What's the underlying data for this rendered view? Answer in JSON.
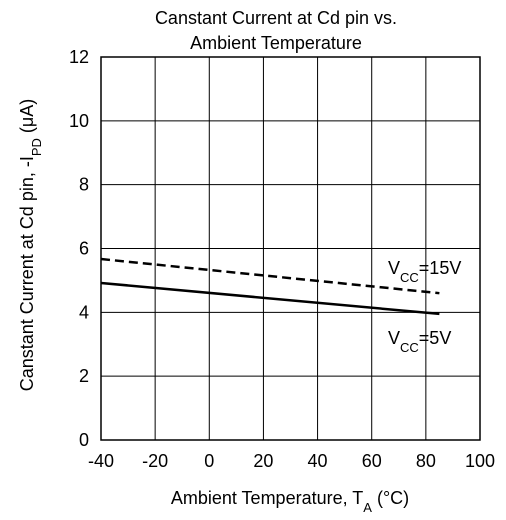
{
  "chart_data": {
    "type": "line",
    "title": [
      "Canstant Current at Cd pin vs.",
      "Ambient Temperature"
    ],
    "xlabel": {
      "main": "Ambient Temperature, T",
      "sub": "A",
      "suffix": " (°C)"
    },
    "ylabel": {
      "main": "Canstant Current at Cd pin, -I",
      "sub": "PD",
      "suffix": " (μA)"
    },
    "x": [
      -40,
      85
    ],
    "series": [
      {
        "label": {
          "main": "V",
          "sub": "CC",
          "suffix": "=15V"
        },
        "color": "#000000",
        "dash": true,
        "values": [
          5.67,
          4.6
        ]
      },
      {
        "label": {
          "main": "V",
          "sub": "CC",
          "suffix": "=5V"
        },
        "color": "#000000",
        "dash": false,
        "values": [
          4.92,
          3.95
        ]
      }
    ],
    "xlim": [
      -40,
      100
    ],
    "xticks": [
      -40,
      -20,
      0,
      20,
      40,
      60,
      80,
      100
    ],
    "ylim": [
      0,
      12
    ],
    "yticks": [
      0,
      2,
      4,
      6,
      8,
      10,
      12
    ],
    "grid": true
  }
}
